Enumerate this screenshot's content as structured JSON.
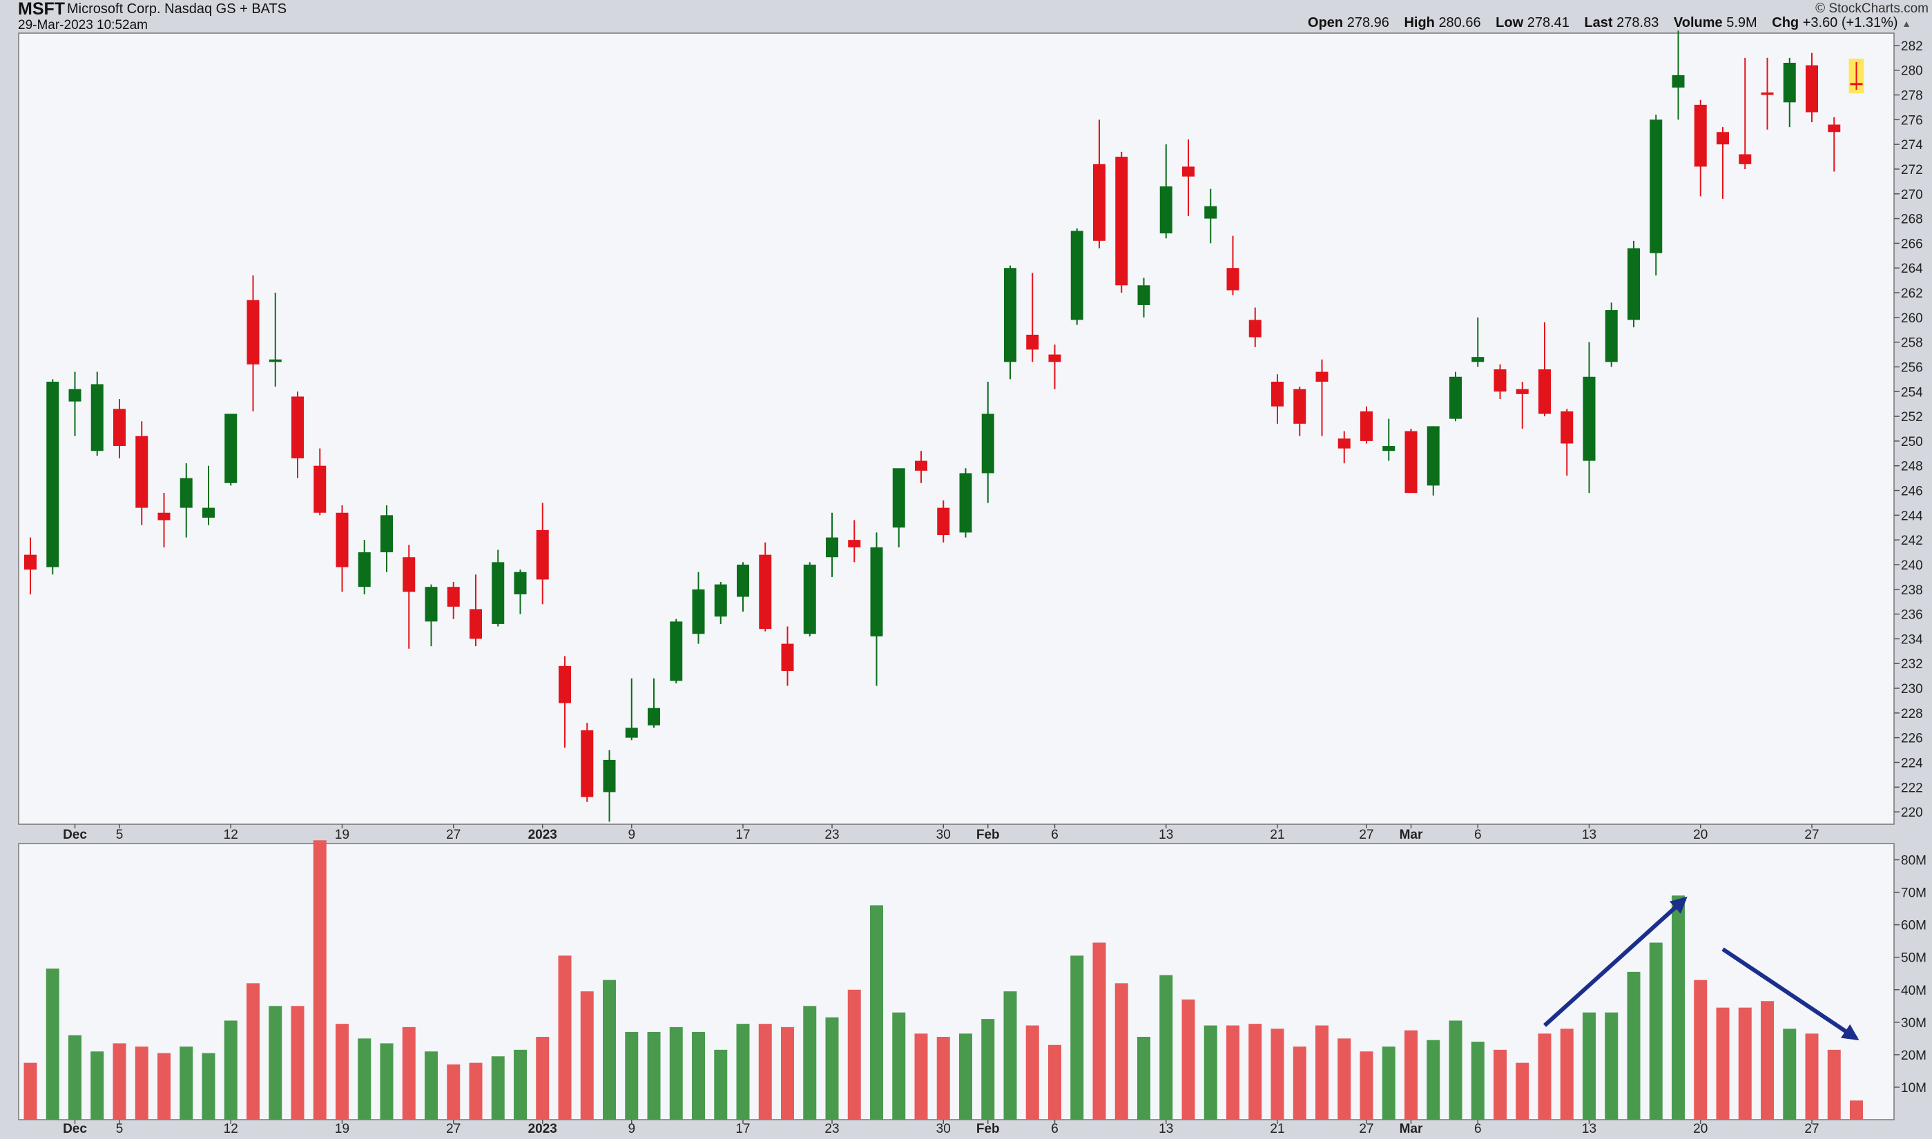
{
  "header": {
    "symbol": "MSFT",
    "name": "Microsoft Corp. Nasdaq GS + BATS",
    "datetime": "29-Mar-2023 10:52am",
    "brand": "© StockCharts.com",
    "quote": {
      "open_label": "Open",
      "open": "278.96",
      "high_label": "High",
      "high": "280.66",
      "low_label": "Low",
      "low": "278.41",
      "last_label": "Last",
      "last": "278.83",
      "volume_label": "Volume",
      "volume": "5.9M",
      "chg_label": "Chg",
      "chg": "+3.60 (+1.31%)",
      "chg_arrow": "▲"
    }
  },
  "colors": {
    "up": "#0b6e1a",
    "down": "#e3131b",
    "vol_up": "#4a9a4e",
    "vol_down": "#e85a5a",
    "arrow": "#1c2e8c",
    "plot_bg": "#f4f6fa",
    "frame_bg": "#d4d7dd"
  },
  "chart_data": [
    {
      "type": "candlestick",
      "price_axis": {
        "ylim": [
          219,
          283
        ],
        "ticks": [
          220,
          222,
          224,
          226,
          228,
          230,
          232,
          234,
          236,
          238,
          240,
          242,
          244,
          246,
          248,
          250,
          252,
          254,
          256,
          258,
          260,
          262,
          264,
          266,
          268,
          270,
          272,
          274,
          276,
          278,
          280,
          282
        ]
      },
      "x_labels": [
        {
          "i": 2,
          "text": "Dec",
          "bold": true
        },
        {
          "i": 4,
          "text": "5"
        },
        {
          "i": 9,
          "text": "12"
        },
        {
          "i": 14,
          "text": "19"
        },
        {
          "i": 19,
          "text": "27"
        },
        {
          "i": 23,
          "text": "2023",
          "bold": true
        },
        {
          "i": 27,
          "text": "9"
        },
        {
          "i": 32,
          "text": "17"
        },
        {
          "i": 36,
          "text": "23"
        },
        {
          "i": 41,
          "text": "30"
        },
        {
          "i": 43,
          "text": "Feb",
          "bold": true
        },
        {
          "i": 46,
          "text": "6"
        },
        {
          "i": 51,
          "text": "13"
        },
        {
          "i": 56,
          "text": "21"
        },
        {
          "i": 60,
          "text": "27"
        },
        {
          "i": 62,
          "text": "Mar",
          "bold": true
        },
        {
          "i": 65,
          "text": "6"
        },
        {
          "i": 70,
          "text": "13"
        },
        {
          "i": 75,
          "text": "20"
        },
        {
          "i": 80,
          "text": "27"
        }
      ],
      "candles": [
        {
          "o": 240.8,
          "h": 242.2,
          "l": 237.6,
          "c": 239.6
        },
        {
          "o": 239.8,
          "h": 255.0,
          "l": 239.2,
          "c": 254.8
        },
        {
          "o": 253.2,
          "h": 255.6,
          "l": 250.4,
          "c": 254.2
        },
        {
          "o": 249.2,
          "h": 255.6,
          "l": 248.8,
          "c": 254.6
        },
        {
          "o": 252.6,
          "h": 253.4,
          "l": 248.6,
          "c": 249.6
        },
        {
          "o": 250.4,
          "h": 251.6,
          "l": 243.2,
          "c": 244.6
        },
        {
          "o": 244.2,
          "h": 245.8,
          "l": 241.4,
          "c": 243.6
        },
        {
          "o": 244.6,
          "h": 248.2,
          "l": 242.2,
          "c": 247.0
        },
        {
          "o": 243.8,
          "h": 248.0,
          "l": 243.2,
          "c": 244.6
        },
        {
          "o": 246.6,
          "h": 252.2,
          "l": 246.4,
          "c": 252.2
        },
        {
          "o": 261.4,
          "h": 263.4,
          "l": 252.4,
          "c": 256.2
        },
        {
          "o": 256.4,
          "h": 262.0,
          "l": 254.4,
          "c": 256.6
        },
        {
          "o": 253.6,
          "h": 254.0,
          "l": 247.0,
          "c": 248.6
        },
        {
          "o": 248.0,
          "h": 249.4,
          "l": 244.0,
          "c": 244.2
        },
        {
          "o": 244.2,
          "h": 244.8,
          "l": 237.8,
          "c": 239.8
        },
        {
          "o": 238.2,
          "h": 242.0,
          "l": 237.6,
          "c": 241.0
        },
        {
          "o": 241.0,
          "h": 244.8,
          "l": 239.4,
          "c": 244.0
        },
        {
          "o": 240.6,
          "h": 241.6,
          "l": 233.2,
          "c": 237.8
        },
        {
          "o": 235.4,
          "h": 238.4,
          "l": 233.4,
          "c": 238.2
        },
        {
          "o": 238.2,
          "h": 238.6,
          "l": 235.6,
          "c": 236.6
        },
        {
          "o": 236.4,
          "h": 239.2,
          "l": 233.4,
          "c": 234.0
        },
        {
          "o": 235.2,
          "h": 241.2,
          "l": 235.0,
          "c": 240.2
        },
        {
          "o": 237.6,
          "h": 239.6,
          "l": 236.0,
          "c": 239.4
        },
        {
          "o": 242.8,
          "h": 245.0,
          "l": 236.8,
          "c": 238.8
        },
        {
          "o": 231.8,
          "h": 232.6,
          "l": 225.2,
          "c": 228.8
        },
        {
          "o": 226.6,
          "h": 227.2,
          "l": 220.8,
          "c": 221.2
        },
        {
          "o": 221.6,
          "h": 225.0,
          "l": 219.2,
          "c": 224.2
        },
        {
          "o": 226.0,
          "h": 230.8,
          "l": 225.8,
          "c": 226.8
        },
        {
          "o": 227.0,
          "h": 230.8,
          "l": 226.8,
          "c": 228.4
        },
        {
          "o": 230.6,
          "h": 235.6,
          "l": 230.4,
          "c": 235.4
        },
        {
          "o": 234.4,
          "h": 239.4,
          "l": 233.6,
          "c": 238.0
        },
        {
          "o": 235.8,
          "h": 238.6,
          "l": 235.2,
          "c": 238.4
        },
        {
          "o": 237.4,
          "h": 240.2,
          "l": 236.2,
          "c": 240.0
        },
        {
          "o": 240.8,
          "h": 241.8,
          "l": 234.6,
          "c": 234.8
        },
        {
          "o": 233.6,
          "h": 235.0,
          "l": 230.2,
          "c": 231.4
        },
        {
          "o": 234.4,
          "h": 240.2,
          "l": 234.2,
          "c": 240.0
        },
        {
          "o": 240.6,
          "h": 244.2,
          "l": 239.0,
          "c": 242.2
        },
        {
          "o": 242.0,
          "h": 243.6,
          "l": 240.2,
          "c": 241.4
        },
        {
          "o": 234.2,
          "h": 242.6,
          "l": 230.2,
          "c": 241.4
        },
        {
          "o": 243.0,
          "h": 247.6,
          "l": 241.4,
          "c": 247.8
        },
        {
          "o": 248.4,
          "h": 249.2,
          "l": 246.6,
          "c": 247.6
        },
        {
          "o": 244.6,
          "h": 245.2,
          "l": 241.8,
          "c": 242.4
        },
        {
          "o": 242.6,
          "h": 247.8,
          "l": 242.2,
          "c": 247.4
        },
        {
          "o": 247.4,
          "h": 254.8,
          "l": 245.0,
          "c": 252.2
        },
        {
          "o": 256.4,
          "h": 264.2,
          "l": 255.0,
          "c": 264.0
        },
        {
          "o": 258.6,
          "h": 263.6,
          "l": 256.4,
          "c": 257.4
        },
        {
          "o": 257.0,
          "h": 257.8,
          "l": 254.2,
          "c": 256.4
        },
        {
          "o": 259.8,
          "h": 267.2,
          "l": 259.4,
          "c": 267.0
        },
        {
          "o": 272.4,
          "h": 276.0,
          "l": 265.6,
          "c": 266.2
        },
        {
          "o": 273.0,
          "h": 273.4,
          "l": 262.0,
          "c": 262.6
        },
        {
          "o": 261.0,
          "h": 263.2,
          "l": 260.0,
          "c": 262.6
        },
        {
          "o": 266.8,
          "h": 274.0,
          "l": 266.4,
          "c": 270.6
        },
        {
          "o": 272.2,
          "h": 274.4,
          "l": 268.2,
          "c": 271.4
        },
        {
          "o": 268.0,
          "h": 270.4,
          "l": 266.0,
          "c": 269.0
        },
        {
          "o": 264.0,
          "h": 266.6,
          "l": 261.8,
          "c": 262.2
        },
        {
          "o": 259.8,
          "h": 260.8,
          "l": 257.6,
          "c": 258.4
        },
        {
          "o": 254.8,
          "h": 255.4,
          "l": 251.4,
          "c": 252.8
        },
        {
          "o": 254.2,
          "h": 254.4,
          "l": 250.4,
          "c": 251.4
        },
        {
          "o": 255.6,
          "h": 256.6,
          "l": 250.4,
          "c": 254.8
        },
        {
          "o": 250.2,
          "h": 250.8,
          "l": 248.2,
          "c": 249.4
        },
        {
          "o": 252.4,
          "h": 252.8,
          "l": 249.8,
          "c": 250.0
        },
        {
          "o": 249.2,
          "h": 251.8,
          "l": 248.4,
          "c": 249.6
        },
        {
          "o": 250.8,
          "h": 251.0,
          "l": 245.8,
          "c": 245.8
        },
        {
          "o": 246.4,
          "h": 251.2,
          "l": 245.6,
          "c": 251.2
        },
        {
          "o": 251.8,
          "h": 255.6,
          "l": 251.6,
          "c": 255.2
        },
        {
          "o": 256.4,
          "h": 260.0,
          "l": 256.0,
          "c": 256.8
        },
        {
          "o": 255.8,
          "h": 256.2,
          "l": 253.4,
          "c": 254.0
        },
        {
          "o": 254.2,
          "h": 254.8,
          "l": 251.0,
          "c": 253.8
        },
        {
          "o": 255.8,
          "h": 259.6,
          "l": 252.0,
          "c": 252.2
        },
        {
          "o": 252.4,
          "h": 252.6,
          "l": 247.2,
          "c": 249.8
        },
        {
          "o": 248.4,
          "h": 258.0,
          "l": 245.8,
          "c": 255.2
        },
        {
          "o": 256.4,
          "h": 261.2,
          "l": 256.0,
          "c": 260.6
        },
        {
          "o": 259.8,
          "h": 266.2,
          "l": 259.2,
          "c": 265.6
        },
        {
          "o": 265.2,
          "h": 276.4,
          "l": 263.4,
          "c": 276.0
        },
        {
          "o": 278.6,
          "h": 283.2,
          "l": 276.0,
          "c": 279.6
        },
        {
          "o": 277.2,
          "h": 277.6,
          "l": 269.8,
          "c": 272.2
        },
        {
          "o": 275.0,
          "h": 275.4,
          "l": 269.6,
          "c": 274.0
        },
        {
          "o": 273.2,
          "h": 281.0,
          "l": 272.0,
          "c": 272.4
        },
        {
          "o": 278.2,
          "h": 281.0,
          "l": 275.2,
          "c": 278.0
        },
        {
          "o": 277.4,
          "h": 281.0,
          "l": 275.4,
          "c": 280.6
        },
        {
          "o": 280.4,
          "h": 281.4,
          "l": 275.8,
          "c": 276.6
        },
        {
          "o": 275.6,
          "h": 276.2,
          "l": 271.8,
          "c": 275.0
        },
        {
          "o": 278.96,
          "h": 280.66,
          "l": 278.41,
          "c": 278.83
        }
      ],
      "last_highlight_color": "#ffe65c"
    },
    {
      "type": "bar",
      "title": "Volume",
      "unit": "M",
      "ylim": [
        0,
        85
      ],
      "ticks": [
        {
          "v": 10,
          "text": "10M"
        },
        {
          "v": 20,
          "text": "20M"
        },
        {
          "v": 30,
          "text": "30M"
        },
        {
          "v": 40,
          "text": "40M"
        },
        {
          "v": 50,
          "text": "50M"
        },
        {
          "v": 60,
          "text": "60M"
        },
        {
          "v": 70,
          "text": "70M"
        },
        {
          "v": 80,
          "text": "80M"
        }
      ],
      "values": [
        17.5,
        46.5,
        26,
        21,
        23.5,
        22.5,
        20.5,
        22.5,
        20.5,
        30.5,
        42,
        35,
        35,
        86,
        29.5,
        25,
        23.5,
        28.5,
        21,
        17,
        17.5,
        19.5,
        21.5,
        25.5,
        50.5,
        39.5,
        43,
        27,
        27,
        28.5,
        27,
        21.5,
        29.5,
        29.5,
        28.5,
        35,
        31.5,
        40,
        66,
        33,
        26.5,
        25.5,
        26.5,
        31,
        39.5,
        29,
        23,
        50.5,
        54.5,
        42,
        25.5,
        44.5,
        37,
        29,
        29,
        29.5,
        28,
        22.5,
        29,
        25,
        21,
        22.5,
        27.5,
        24.5,
        30.5,
        24,
        21.5,
        17.5,
        26.5,
        28,
        33,
        33,
        45.5,
        54.5,
        69,
        43,
        34.5,
        34.5,
        36.5,
        28,
        26.5,
        21.5,
        5.9
      ],
      "annotations": [
        {
          "type": "arrow",
          "from": {
            "i": 68,
            "v": 29
          },
          "to": {
            "i": 74.3,
            "v": 68
          }
        },
        {
          "type": "arrow",
          "from": {
            "i": 76,
            "v": 52.5
          },
          "to": {
            "i": 82,
            "v": 25
          }
        }
      ]
    }
  ]
}
